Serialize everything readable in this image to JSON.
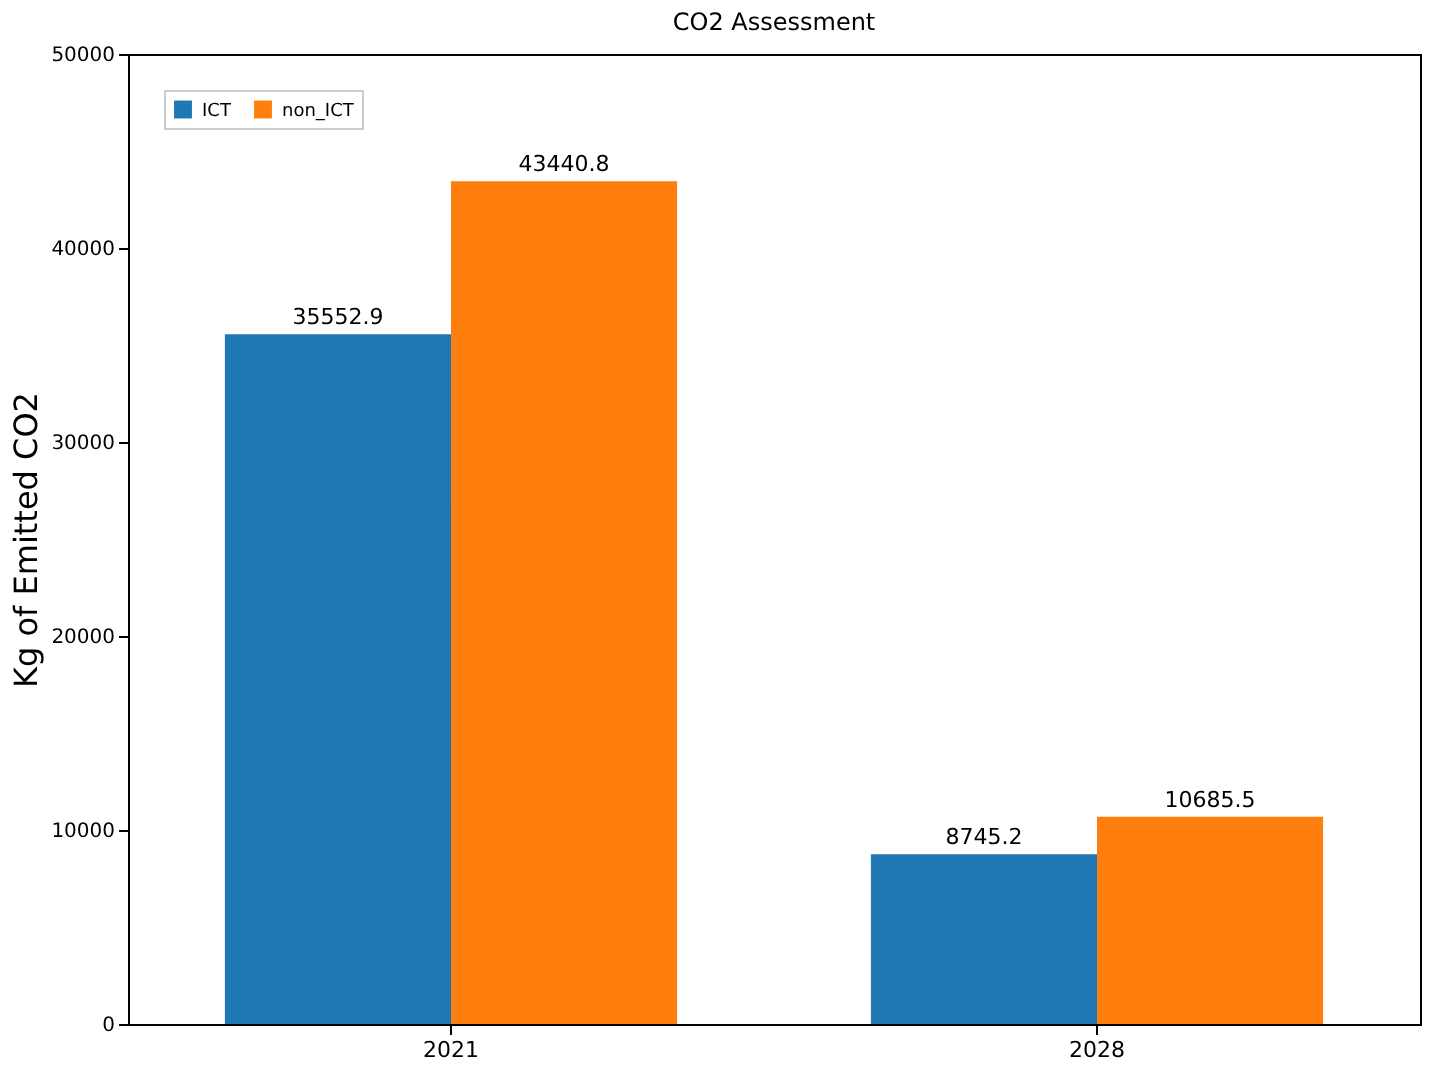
{
  "chart_data": {
    "type": "bar",
    "title": "CO2 Assessment",
    "ylabel": "Kg of Emitted CO2",
    "categories": [
      "2021",
      "2028"
    ],
    "series": [
      {
        "name": "ICT",
        "color": "#1f77b4",
        "values": [
          35552.9,
          8745.2
        ]
      },
      {
        "name": "non_ICT",
        "color": "#ff7f0e",
        "values": [
          43440.8,
          10685.5
        ]
      }
    ],
    "ylim": [
      0,
      50000
    ],
    "yticks": [
      0,
      10000,
      20000,
      30000,
      40000,
      50000
    ],
    "data_labels": true,
    "legend": "top left",
    "grid": false
  }
}
